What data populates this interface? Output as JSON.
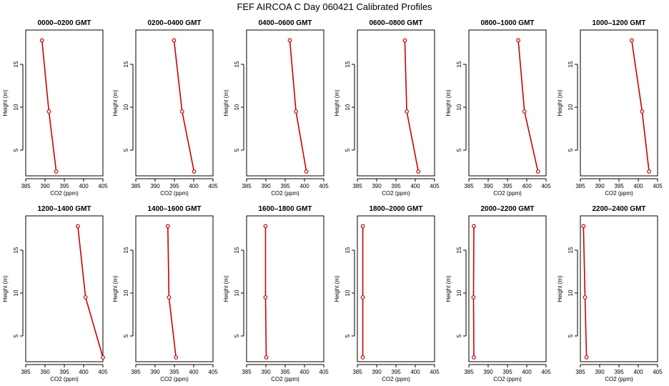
{
  "figure": {
    "title": "FEF AIRCOA C  Day 060421  Calibrated Profiles"
  },
  "chart_data": {
    "type": "line",
    "xlabel": "CO2 (ppm)",
    "ylabel": "Height (m)",
    "xlim": [
      385,
      405
    ],
    "ylim": [
      2,
      19
    ],
    "xticks": [
      "385",
      "390",
      "395",
      "400",
      "405"
    ],
    "yticks": [
      "5",
      "10",
      "15"
    ],
    "heights": [
      17.8,
      9.5,
      2.5
    ],
    "line_color": "#cc0000",
    "panels": [
      {
        "title": "0000–0200 GMT",
        "co2": [
          389.2,
          391.0,
          392.9
        ]
      },
      {
        "title": "0200–0400 GMT",
        "co2": [
          394.9,
          397.0,
          400.1
        ]
      },
      {
        "title": "0400–0600 GMT",
        "co2": [
          396.2,
          397.8,
          400.5
        ]
      },
      {
        "title": "0600–0800 GMT",
        "co2": [
          397.3,
          397.8,
          400.8
        ]
      },
      {
        "title": "0800–1000 GMT",
        "co2": [
          397.8,
          399.4,
          402.9
        ]
      },
      {
        "title": "1000–1200 GMT",
        "co2": [
          398.3,
          401.0,
          402.8
        ]
      },
      {
        "title": "1200–1400 GMT",
        "co2": [
          398.5,
          400.5,
          405.0
        ]
      },
      {
        "title": "1400–1600 GMT",
        "co2": [
          393.3,
          393.6,
          395.4
        ]
      },
      {
        "title": "1600–1800 GMT",
        "co2": [
          389.9,
          389.9,
          390.1
        ]
      },
      {
        "title": "1800–2000 GMT",
        "co2": [
          386.4,
          386.4,
          386.4
        ]
      },
      {
        "title": "2000–2200 GMT",
        "co2": [
          386.3,
          386.2,
          386.3
        ]
      },
      {
        "title": "2200–2400 GMT",
        "co2": [
          385.8,
          386.2,
          386.6
        ]
      }
    ]
  }
}
